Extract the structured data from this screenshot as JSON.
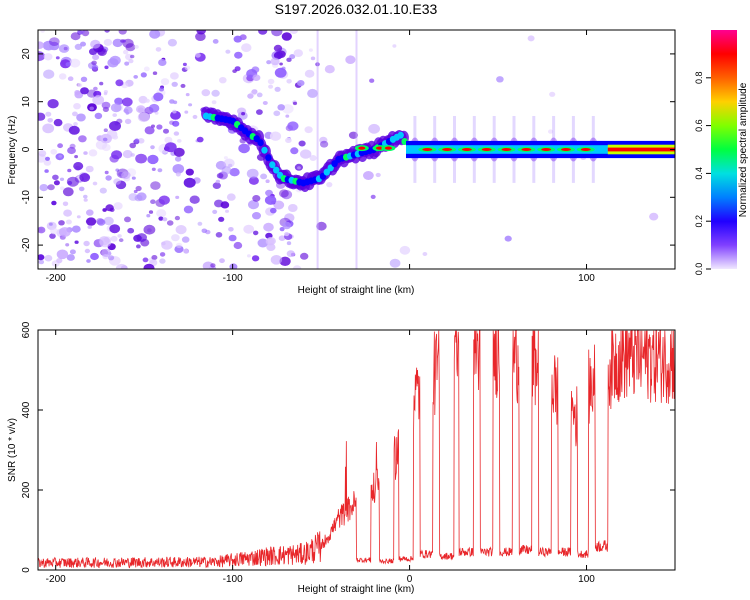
{
  "title": "S197.2026.032.01.10.E33",
  "chart_data": [
    {
      "type": "heatmap",
      "xlabel": "Height of straight line (km)",
      "ylabel": "Frequency (Hz)",
      "xlim": [
        -210,
        150
      ],
      "ylim": [
        -25,
        25
      ],
      "xticks": [
        -200,
        -100,
        0,
        100
      ],
      "xtick_labels": [
        "-200",
        "-100",
        "",
        "100"
      ],
      "yticks": [
        -20,
        -10,
        0,
        10,
        20
      ],
      "colorbar": {
        "label": "Normalized spectral amplitude",
        "range": [
          0,
          1
        ],
        "ticks": [
          0.0,
          0.2,
          0.4,
          0.6,
          0.8
        ],
        "tick_labels": [
          "0.0",
          "0.2",
          "0.4",
          "0.6",
          "0.8"
        ],
        "colors": [
          "#e8d8ff",
          "#5a00e0",
          "#0000ff",
          "#00c8ff",
          "#00ff60",
          "#c8ff00",
          "#ff9000",
          "#ff0000",
          "#ff0090"
        ]
      },
      "ridge": [
        {
          "x": -115,
          "y": 7
        },
        {
          "x": -100,
          "y": 6
        },
        {
          "x": -90,
          "y": 3
        },
        {
          "x": -85,
          "y": 2
        },
        {
          "x": -78,
          "y": -3
        },
        {
          "x": -72,
          "y": -6
        },
        {
          "x": -60,
          "y": -7
        },
        {
          "x": -50,
          "y": -6
        },
        {
          "x": -40,
          "y": -2
        },
        {
          "x": -30,
          "y": -1
        },
        {
          "x": -20,
          "y": 0
        },
        {
          "x": -15,
          "y": 1
        },
        {
          "x": -5,
          "y": 3
        },
        {
          "x": 0,
          "y": 0
        },
        {
          "x": 150,
          "y": 0
        }
      ]
    },
    {
      "type": "line",
      "xlabel": "Height of straight line (km)",
      "ylabel": "SNR (10 * v/v)",
      "xlim": [
        -210,
        150
      ],
      "ylim": [
        0,
        600
      ],
      "xticks": [
        -200,
        -100,
        0,
        100
      ],
      "xtick_labels": [
        "-200",
        "-100",
        "0",
        "100"
      ],
      "yticks": [
        0,
        200,
        400,
        600
      ],
      "ytick_labels": [
        "0",
        "200",
        "400",
        "600"
      ],
      "line_color": "#e8262a",
      "baseline": [
        {
          "x": -210,
          "y": 18
        },
        {
          "x": -110,
          "y": 20
        },
        {
          "x": -80,
          "y": 35
        },
        {
          "x": -60,
          "y": 40
        },
        {
          "x": -50,
          "y": 60
        },
        {
          "x": -45,
          "y": 90
        },
        {
          "x": -40,
          "y": 130
        },
        {
          "x": -30,
          "y": 170
        },
        {
          "x": -20,
          "y": 200
        },
        {
          "x": -10,
          "y": 260
        },
        {
          "x": -5,
          "y": 330
        },
        {
          "x": 0,
          "y": 420
        },
        {
          "x": 10,
          "y": 470
        },
        {
          "x": 20,
          "y": 520
        },
        {
          "x": 30,
          "y": 555
        },
        {
          "x": 50,
          "y": 550
        },
        {
          "x": 70,
          "y": 520
        },
        {
          "x": 85,
          "y": 440
        },
        {
          "x": 95,
          "y": 380
        },
        {
          "x": 100,
          "y": 450
        },
        {
          "x": 105,
          "y": 470
        },
        {
          "x": 110,
          "y": 500
        },
        {
          "x": 120,
          "y": 540
        },
        {
          "x": 150,
          "y": 530
        }
      ],
      "dips": [
        {
          "x0": -30,
          "x1": -22,
          "y": 25
        },
        {
          "x0": -17,
          "x1": -9,
          "y": 22
        },
        {
          "x0": -6,
          "x1": 2,
          "y": 28
        },
        {
          "x0": 6,
          "x1": 13,
          "y": 40
        },
        {
          "x0": 17,
          "x1": 25,
          "y": 35
        },
        {
          "x0": 28,
          "x1": 36,
          "y": 45
        },
        {
          "x0": 40,
          "x1": 47,
          "y": 45
        },
        {
          "x0": 51,
          "x1": 58,
          "y": 45
        },
        {
          "x0": 62,
          "x1": 69,
          "y": 50
        },
        {
          "x0": 73,
          "x1": 80,
          "y": 45
        },
        {
          "x0": 84,
          "x1": 91,
          "y": 45
        },
        {
          "x0": 95,
          "x1": 101,
          "y": 40
        },
        {
          "x0": 105,
          "x1": 112,
          "y": 60
        }
      ]
    }
  ]
}
